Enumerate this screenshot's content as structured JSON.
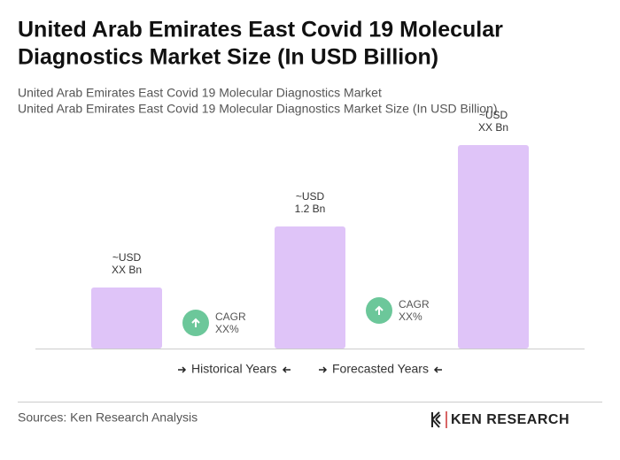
{
  "chart_data": {
    "type": "bar",
    "title": [
      "United Arab Emirates East Covid 19 Molecular",
      "Diagnostics Market Size (In USD Billion)"
    ],
    "subtitle": [
      "United Arab Emirates East Covid 19 Molecular Diagnostics Market",
      "United Arab Emirates East Covid 19 Molecular Diagnostics Market Size (In USD Billion)"
    ],
    "values": [
      0.6,
      1.2,
      2.0
    ],
    "value_labels": [
      [
        "~USD",
        "XX Bn"
      ],
      [
        "~USD",
        "1.2 Bn"
      ],
      [
        "~USD",
        "XX Bn"
      ]
    ],
    "color": "#dfc4f8",
    "annotations": [
      [
        "CAGR",
        "XX%"
      ],
      [
        "CAGR",
        "XX%"
      ]
    ],
    "annotation_color": "#6cc79a",
    "legend": [
      "Historical Years",
      "Forecasted Years"
    ],
    "source": "Sources: Ken Research Analysis",
    "logo": "KEN RESEARCH"
  }
}
